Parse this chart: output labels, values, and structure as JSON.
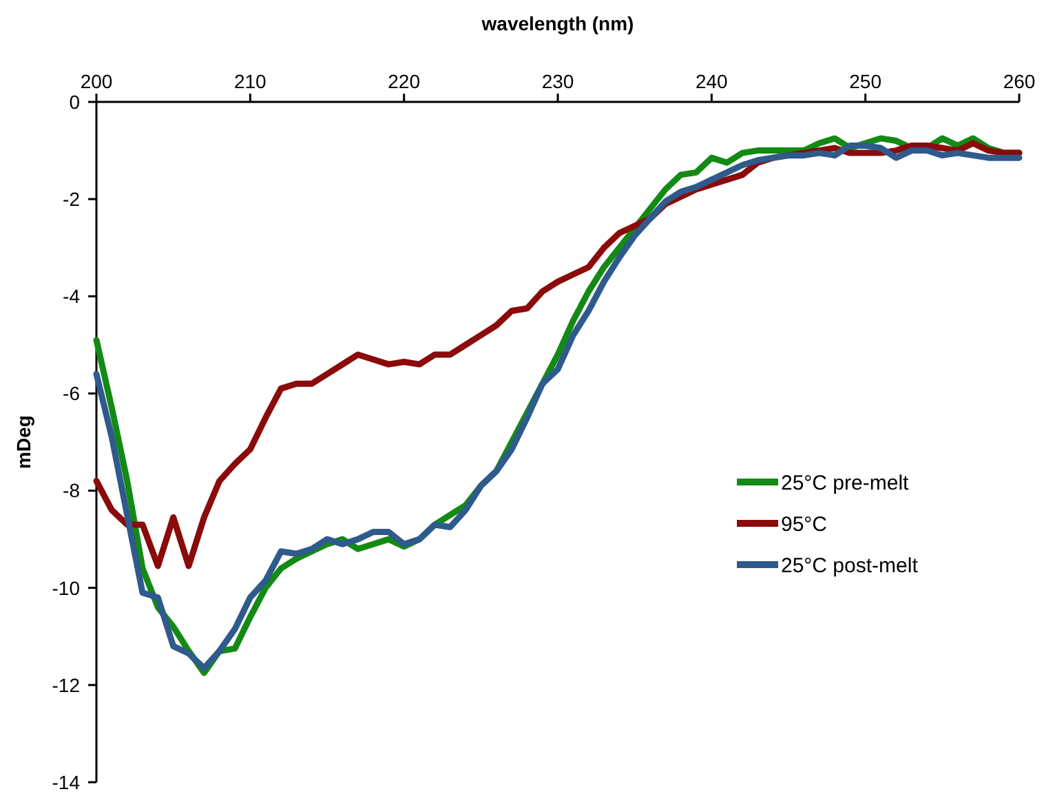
{
  "chart_data": {
    "type": "line",
    "xlabel": "wavelength (nm)",
    "ylabel": "mDeg",
    "x": [
      200,
      201,
      202,
      203,
      204,
      205,
      206,
      207,
      208,
      209,
      210,
      211,
      212,
      213,
      214,
      215,
      216,
      217,
      218,
      219,
      220,
      221,
      222,
      223,
      224,
      225,
      226,
      227,
      228,
      229,
      230,
      231,
      232,
      233,
      234,
      235,
      236,
      237,
      238,
      239,
      240,
      241,
      242,
      243,
      244,
      245,
      246,
      247,
      248,
      249,
      250,
      251,
      252,
      253,
      254,
      255,
      256,
      257,
      258,
      259,
      260
    ],
    "series": [
      {
        "name": "25°C pre-melt",
        "color": "#138a13",
        "values": [
          -4.9,
          -6.3,
          -7.8,
          -9.6,
          -10.4,
          -10.8,
          -11.3,
          -11.75,
          -11.3,
          -11.25,
          -10.6,
          -10.0,
          -9.6,
          -9.4,
          -9.25,
          -9.1,
          -9.0,
          -9.2,
          -9.1,
          -9.0,
          -9.15,
          -9.0,
          -8.7,
          -8.5,
          -8.3,
          -7.9,
          -7.6,
          -7.0,
          -6.4,
          -5.8,
          -5.2,
          -4.5,
          -3.9,
          -3.4,
          -3.0,
          -2.6,
          -2.2,
          -1.8,
          -1.5,
          -1.45,
          -1.15,
          -1.25,
          -1.05,
          -1.0,
          -1.0,
          -1.0,
          -1.0,
          -0.85,
          -0.75,
          -0.95,
          -0.85,
          -0.75,
          -0.8,
          -0.95,
          -0.95,
          -0.75,
          -0.9,
          -0.75,
          -0.95,
          -1.05,
          -1.05
        ]
      },
      {
        "name": "95°C",
        "color": "#8b0a0a",
        "values": [
          -7.8,
          -8.4,
          -8.7,
          -8.7,
          -9.55,
          -8.55,
          -9.55,
          -8.55,
          -7.8,
          -7.45,
          -7.15,
          -6.5,
          -5.9,
          -5.8,
          -5.8,
          -5.6,
          -5.4,
          -5.2,
          -5.3,
          -5.4,
          -5.35,
          -5.4,
          -5.2,
          -5.2,
          -5.0,
          -4.8,
          -4.6,
          -4.3,
          -4.25,
          -3.9,
          -3.7,
          -3.55,
          -3.4,
          -3.0,
          -2.7,
          -2.55,
          -2.4,
          -2.1,
          -1.95,
          -1.8,
          -1.7,
          -1.6,
          -1.5,
          -1.25,
          -1.15,
          -1.1,
          -1.05,
          -1.0,
          -0.95,
          -1.05,
          -1.05,
          -1.05,
          -1.0,
          -0.9,
          -0.9,
          -0.95,
          -1.0,
          -0.85,
          -1.0,
          -1.05,
          -1.05
        ]
      },
      {
        "name": "25°C post-melt",
        "color": "#2e5a8c",
        "values": [
          -5.6,
          -6.9,
          -8.5,
          -10.1,
          -10.2,
          -11.2,
          -11.35,
          -11.65,
          -11.3,
          -10.85,
          -10.2,
          -9.85,
          -9.25,
          -9.3,
          -9.2,
          -9.0,
          -9.1,
          -9.0,
          -8.85,
          -8.85,
          -9.1,
          -9.0,
          -8.7,
          -8.75,
          -8.4,
          -7.9,
          -7.6,
          -7.15,
          -6.5,
          -5.8,
          -5.5,
          -4.8,
          -4.3,
          -3.7,
          -3.2,
          -2.75,
          -2.4,
          -2.05,
          -1.85,
          -1.75,
          -1.6,
          -1.45,
          -1.3,
          -1.2,
          -1.15,
          -1.1,
          -1.1,
          -1.05,
          -1.1,
          -0.9,
          -0.9,
          -0.95,
          -1.15,
          -1.0,
          -1.0,
          -1.1,
          -1.05,
          -1.1,
          -1.15,
          -1.15,
          -1.15
        ]
      }
    ],
    "xlim": [
      200,
      260
    ],
    "xticks": [
      200,
      210,
      220,
      230,
      240,
      250,
      260
    ],
    "ylim": [
      -14,
      0
    ],
    "yticks": [
      -14,
      -12,
      -10,
      -8,
      -6,
      -4,
      -2,
      0
    ],
    "grid": false,
    "legend": "right",
    "marker": "none",
    "line_style": "solid"
  }
}
